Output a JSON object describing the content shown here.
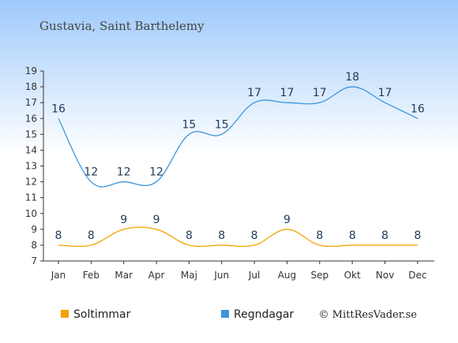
{
  "chart_data": {
    "type": "line",
    "title": "Gustavia, Saint Barthelemy",
    "categories": [
      "Jan",
      "Feb",
      "Mar",
      "Apr",
      "Maj",
      "Jun",
      "Jul",
      "Aug",
      "Sep",
      "Okt",
      "Nov",
      "Dec"
    ],
    "ylim": [
      7,
      19
    ],
    "yticks": [
      7,
      8,
      9,
      10,
      11,
      12,
      13,
      14,
      15,
      16,
      17,
      18,
      19
    ],
    "series": [
      {
        "name": "Soltimmar",
        "color": "#f5a300",
        "values": [
          8,
          8,
          9,
          9,
          8,
          8,
          8,
          9,
          8,
          8,
          8,
          8
        ]
      },
      {
        "name": "Regndagar",
        "color": "#3a96dd",
        "values": [
          16,
          12,
          12,
          12,
          15,
          15,
          17,
          17,
          17,
          18,
          17,
          16
        ]
      }
    ],
    "legend_position": "bottom-left",
    "grid": false,
    "credit": "© MittResVader.se"
  }
}
